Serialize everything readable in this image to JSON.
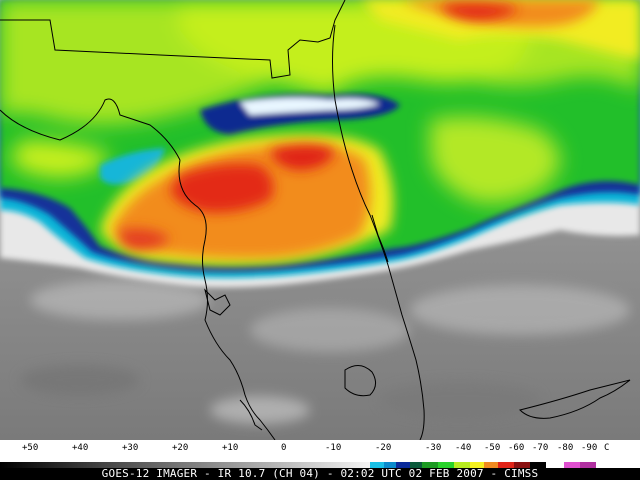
{
  "image": {
    "caption": "GOES-12 IMAGER - IR 10.7 (CH 04) - 02:02 UTC 02 FEB 2007 - CIMSS"
  },
  "scale": {
    "ticks": [
      "+50",
      "+40",
      "+30",
      "+20",
      "+10",
      "0",
      "-10",
      "-20",
      "-30",
      "-40",
      "-50",
      "-60",
      "-70",
      "-80",
      "-90",
      "C"
    ]
  },
  "colors": {
    "warm_gray": "#8a8a8a",
    "cold_white": "#e6e6e6",
    "cyan": "#00bfe0",
    "blue": "#0a2a9a",
    "green": "#22c02a",
    "yellow_green": "#b8ec20",
    "yellow": "#f5f020",
    "orange": "#f08a20",
    "red": "#e02418",
    "magenta": "#e050d0"
  }
}
